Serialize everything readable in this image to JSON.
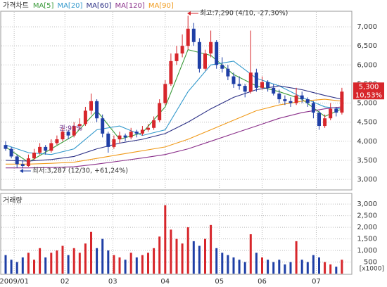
{
  "chart_data": {
    "type": "candlestick",
    "title": "가격차트",
    "ylim": [
      2760,
      7370
    ],
    "yticks": [
      {
        "value": 3000,
        "label": "3,000"
      },
      {
        "value": 3500,
        "label": "3,500"
      },
      {
        "value": 4000,
        "label": "4,000"
      },
      {
        "value": 4500,
        "label": "4,500"
      },
      {
        "value": 5000,
        "label": "5,000"
      },
      {
        "value": 5500,
        "label": "5,500"
      },
      {
        "value": 6000,
        "label": "6,000"
      },
      {
        "value": 6500,
        "label": "6,500"
      },
      {
        "value": 7000,
        "label": "7,000"
      }
    ],
    "xlim": [
      -1,
      60
    ],
    "xticks": [
      {
        "value": 1.5,
        "label": "2009/01"
      },
      {
        "value": 10.4,
        "label": "02"
      },
      {
        "value": 18.8,
        "label": "03"
      },
      {
        "value": 28,
        "label": "04"
      },
      {
        "value": 37.5,
        "label": "05"
      },
      {
        "value": 45,
        "label": "06"
      },
      {
        "value": 54.5,
        "label": "07"
      }
    ],
    "grid": true,
    "up_color": "#d7262b",
    "down_color": "#1f3fa6",
    "candles": [
      [
        3900,
        4000,
        3750,
        3800
      ],
      [
        3800,
        3850,
        3550,
        3600
      ],
      [
        3600,
        3650,
        3300,
        3400
      ],
      [
        3400,
        3500,
        3287,
        3350
      ],
      [
        3350,
        3650,
        3330,
        3550
      ],
      [
        3550,
        3800,
        3500,
        3700
      ],
      [
        3700,
        3950,
        3650,
        3850
      ],
      [
        3850,
        3900,
        3650,
        3750
      ],
      [
        3750,
        4050,
        3700,
        3950
      ],
      [
        3950,
        4150,
        3900,
        4050
      ],
      [
        4050,
        4350,
        4000,
        4250
      ],
      [
        4250,
        4300,
        4050,
        4150
      ],
      [
        4150,
        4500,
        4100,
        4400
      ],
      [
        4400,
        4600,
        4300,
        4450
      ],
      [
        4450,
        4900,
        4400,
        4800
      ],
      [
        4800,
        5250,
        4700,
        5050
      ],
      [
        5050,
        5100,
        4500,
        4600
      ],
      [
        4600,
        4700,
        4100,
        4200
      ],
      [
        4200,
        4250,
        3700,
        3850
      ],
      [
        3850,
        4150,
        3800,
        4050
      ],
      [
        4050,
        4250,
        3950,
        4150
      ],
      [
        4150,
        4200,
        4000,
        4100
      ],
      [
        4100,
        4350,
        4050,
        4250
      ],
      [
        4250,
        4300,
        4100,
        4200
      ],
      [
        4200,
        4400,
        4150,
        4300
      ],
      [
        4300,
        4450,
        4250,
        4350
      ],
      [
        4350,
        4650,
        4300,
        4550
      ],
      [
        4550,
        5100,
        4500,
        5000
      ],
      [
        5000,
        5600,
        4950,
        5500
      ],
      [
        5500,
        6300,
        5450,
        6100
      ],
      [
        6100,
        6500,
        6000,
        6300
      ],
      [
        6300,
        6800,
        6200,
        6500
      ],
      [
        6500,
        7290,
        6400,
        6950
      ],
      [
        6950,
        7100,
        6500,
        6600
      ],
      [
        6600,
        6700,
        5800,
        5900
      ],
      [
        5900,
        6400,
        5850,
        6300
      ],
      [
        6300,
        6900,
        6200,
        6600
      ],
      [
        6600,
        6650,
        5900,
        6000
      ],
      [
        6000,
        6200,
        5800,
        5900
      ],
      [
        5900,
        6000,
        5600,
        5700
      ],
      [
        5700,
        5800,
        5400,
        5500
      ],
      [
        5500,
        5700,
        5350,
        5450
      ],
      [
        5450,
        5500,
        5150,
        5300
      ],
      [
        5300,
        6900,
        5250,
        5800
      ],
      [
        5800,
        5900,
        5300,
        5400
      ],
      [
        5400,
        5700,
        5350,
        5550
      ],
      [
        5550,
        5600,
        5300,
        5400
      ],
      [
        5400,
        5500,
        5200,
        5250
      ],
      [
        5250,
        5350,
        5000,
        5100
      ],
      [
        5100,
        5200,
        4950,
        5050
      ],
      [
        5050,
        5150,
        4900,
        5000
      ],
      [
        5000,
        5400,
        4950,
        5200
      ],
      [
        5200,
        5300,
        5000,
        5100
      ],
      [
        5100,
        5150,
        4900,
        5000
      ],
      [
        5000,
        5050,
        4600,
        4750
      ],
      [
        4750,
        4800,
        4300,
        4400
      ],
      [
        4400,
        4700,
        4350,
        4600
      ],
      [
        4600,
        5000,
        4550,
        4850
      ],
      [
        4850,
        4900,
        4650,
        4750
      ],
      [
        4750,
        5400,
        4700,
        5300
      ]
    ],
    "x": [
      0,
      4,
      8,
      12,
      16,
      20,
      24,
      28,
      32,
      36,
      40,
      44,
      48,
      52,
      56,
      59
    ],
    "series": [
      {
        "name": "MA[5]",
        "color": "#3a9a3a",
        "values": [
          3850,
          3450,
          3800,
          4150,
          4800,
          4050,
          4220,
          4900,
          6400,
          6250,
          5750,
          5450,
          5300,
          5100,
          4650,
          4850
        ]
      },
      {
        "name": "MA[20]",
        "color": "#3399cc",
        "values": [
          3900,
          3700,
          3650,
          3800,
          4300,
          4400,
          4150,
          4300,
          5300,
          6000,
          6100,
          5650,
          5450,
          5150,
          4900,
          4850
        ]
      },
      {
        "name": "MA[60]",
        "color": "#2b2f85",
        "values": [
          3500,
          3480,
          3520,
          3600,
          3800,
          3950,
          4050,
          4200,
          4500,
          4850,
          5150,
          5350,
          5450,
          5350,
          5200,
          5100
        ]
      },
      {
        "name": "MA[120]",
        "color": "#8a2f8a",
        "values": [
          3300,
          3300,
          3310,
          3330,
          3400,
          3480,
          3560,
          3650,
          3800,
          4000,
          4200,
          4400,
          4600,
          4750,
          4850,
          4900
        ]
      },
      {
        "name": "MA[90]",
        "color": "#f09a1a",
        "values": [
          3400,
          3400,
          3420,
          3450,
          3550,
          3650,
          3750,
          3850,
          4050,
          4300,
          4550,
          4800,
          4950,
          5050,
          5100,
          5050
        ]
      }
    ],
    "annotations": {
      "high": "최고:7,290 (4/10, -27,30%)",
      "low": "최저:3,287 (12/30, +61,24%)",
      "rights": "권:91%"
    },
    "last": {
      "value": 5300,
      "label": "5,300"
    },
    "change_label": "10,53%",
    "volume": {
      "title": "거래량",
      "unit": "[x1000]",
      "ylim": [
        0,
        3400
      ],
      "yticks": [
        500,
        {
          "value": 1000,
          "label": "1,000"
        },
        {
          "value": 1500,
          "label": "1,500"
        },
        {
          "value": 2000,
          "label": "2,000"
        },
        {
          "value": 2500,
          "label": "2,500"
        },
        {
          "value": 3000,
          "label": "3,000"
        }
      ],
      "values": [
        800,
        600,
        500,
        700,
        900,
        600,
        1100,
        700,
        900,
        1000,
        1200,
        800,
        1100,
        900,
        1300,
        1800,
        1100,
        1500,
        1000,
        800,
        700,
        600,
        900,
        700,
        800,
        900,
        1100,
        1600,
        2950,
        1900,
        1500,
        1300,
        2000,
        1400,
        1200,
        1500,
        2100,
        1100,
        900,
        800,
        700,
        600,
        500,
        1700,
        900,
        700,
        600,
        500,
        600,
        400,
        500,
        1400,
        600,
        500,
        800,
        700,
        500,
        400,
        300,
        600
      ]
    }
  }
}
